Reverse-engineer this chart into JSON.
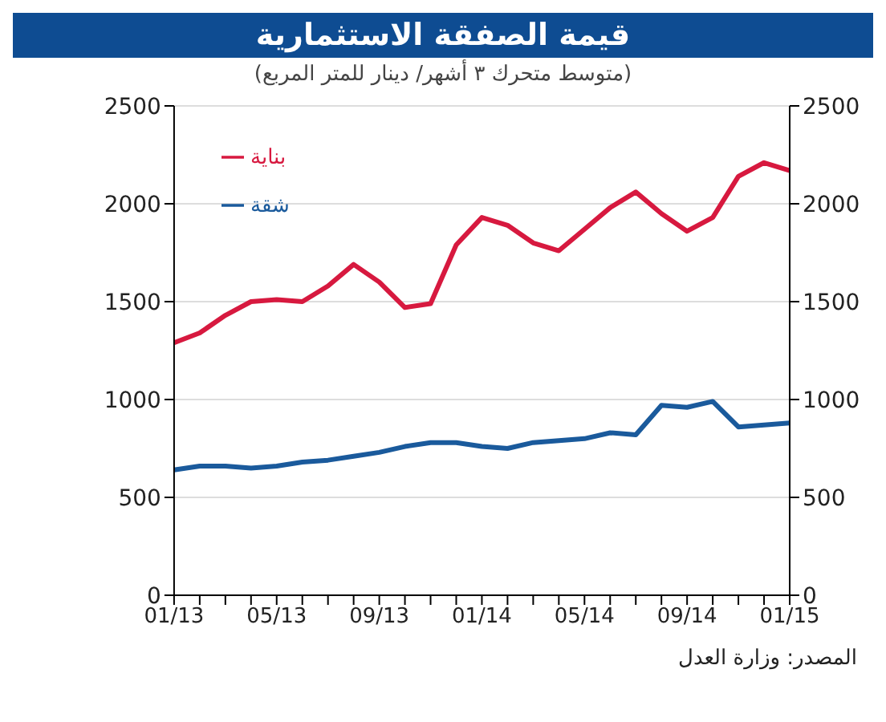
{
  "chart_data": {
    "type": "line",
    "title": "قيمة الصفقة الاستثمارية",
    "subtitle": "(متوسط متحرك ٣ أشهر/ دينار للمتر المربع)",
    "categories": [
      "01/13",
      null,
      null,
      null,
      "05/13",
      null,
      null,
      null,
      "09/13",
      null,
      null,
      null,
      "01/14",
      null,
      null,
      null,
      "05/14",
      null,
      null,
      null,
      "09/14",
      null,
      null,
      null,
      "01/15"
    ],
    "series": [
      {
        "name": "بناية",
        "color": "#d7193f",
        "values": [
          1290,
          1340,
          1430,
          1500,
          1510,
          1500,
          1580,
          1690,
          1600,
          1470,
          1490,
          1790,
          1930,
          1890,
          1800,
          1760,
          1870,
          1980,
          2060,
          1950,
          1860,
          1930,
          2140,
          2210,
          2170
        ]
      },
      {
        "name": "شقة",
        "color": "#1a5a9c",
        "values": [
          640,
          660,
          660,
          650,
          660,
          680,
          690,
          710,
          730,
          760,
          780,
          780,
          760,
          750,
          780,
          790,
          800,
          830,
          820,
          970,
          960,
          990,
          860,
          870,
          880
        ]
      }
    ],
    "ylim": [
      0,
      2500
    ],
    "yticks": [
      0,
      500,
      1000,
      1500,
      2000,
      2500
    ],
    "y2lim": [
      0,
      2500
    ],
    "y2ticks": [
      0,
      500,
      1000,
      1500,
      2000,
      2500
    ],
    "grid": "y",
    "legend": "top left",
    "marker": "none",
    "line_style": "solid",
    "annotations": [
      "المصدر: وزارة العدل"
    ]
  }
}
